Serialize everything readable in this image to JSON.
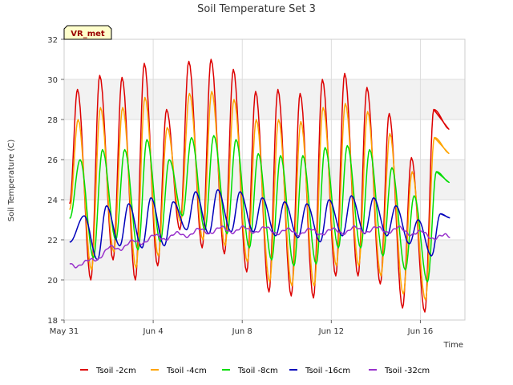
{
  "chart_data": {
    "type": "line",
    "title": "Soil Temperature Set 3",
    "xlabel": "Time",
    "ylabel": "Soil Temperature (C)",
    "site_badge": "VR_met",
    "x_ticks": [
      "May 31",
      "Jun 4",
      "Jun 8",
      "Jun 12",
      "Jun 16"
    ],
    "x_tick_days": [
      0,
      4,
      8,
      12,
      16
    ],
    "x_range_days": [
      0,
      18
    ],
    "y_ticks": [
      18,
      20,
      22,
      24,
      26,
      28,
      30,
      32
    ],
    "ylim": [
      18,
      32
    ],
    "grid": true,
    "legend_position": "bottom",
    "series": [
      {
        "name": "Tsoil -2cm",
        "color": "#dd0000",
        "max": [
          29.5,
          30.2,
          30.1,
          30.8,
          28.5,
          30.9,
          31.0,
          30.5,
          29.4,
          29.5,
          29.3,
          30.0,
          30.3,
          29.6,
          28.3,
          26.1,
          28.5
        ],
        "min": [
          20.0,
          21.0,
          20.0,
          20.7,
          22.5,
          21.6,
          21.3,
          20.4,
          19.4,
          19.2,
          19.1,
          20.2,
          20.2,
          19.8,
          18.6,
          18.4
        ]
      },
      {
        "name": "Tsoil -4cm",
        "color": "#ffa500",
        "max": [
          28.0,
          28.6,
          28.6,
          29.1,
          27.6,
          29.3,
          29.4,
          29.0,
          28.0,
          28.0,
          27.9,
          28.6,
          28.8,
          28.4,
          27.3,
          25.4,
          27.1
        ],
        "min": [
          20.5,
          21.4,
          20.6,
          21.2,
          22.9,
          22.0,
          21.7,
          20.9,
          19.9,
          19.7,
          19.7,
          20.7,
          20.7,
          20.2,
          19.3,
          19.0
        ]
      },
      {
        "name": "Tsoil -8cm",
        "color": "#00dd00",
        "max": [
          26.0,
          26.5,
          26.5,
          27.0,
          26.0,
          27.1,
          27.2,
          27.0,
          26.3,
          26.2,
          26.2,
          26.6,
          26.7,
          26.5,
          25.6,
          24.2,
          25.4
        ],
        "min": [
          21.1,
          22.0,
          21.5,
          21.9,
          23.2,
          22.5,
          22.3,
          21.6,
          21.0,
          20.7,
          20.8,
          21.6,
          21.6,
          21.2,
          20.5,
          19.9
        ]
      },
      {
        "name": "Tsoil -16cm",
        "color": "#0000bb",
        "max": [
          23.2,
          23.7,
          23.8,
          24.1,
          23.9,
          24.4,
          24.5,
          24.4,
          24.1,
          23.9,
          23.8,
          24.0,
          24.2,
          24.1,
          23.7,
          23.0,
          23.3
        ],
        "min": [
          21.0,
          21.7,
          21.6,
          21.7,
          22.5,
          22.3,
          22.4,
          22.4,
          22.2,
          22.1,
          21.9,
          22.2,
          22.3,
          22.2,
          21.8,
          21.2
        ]
      },
      {
        "name": "Tsoil -32cm",
        "color": "#9933cc",
        "start": 20.8,
        "daily_mean": [
          20.8,
          20.8,
          21.5,
          21.8,
          22.1,
          22.2,
          22.4,
          22.5,
          22.5,
          22.5,
          22.4,
          22.4,
          22.4,
          22.5,
          22.5,
          22.5,
          22.3,
          22.1,
          22.3
        ],
        "amplitude": 0.15
      }
    ]
  }
}
